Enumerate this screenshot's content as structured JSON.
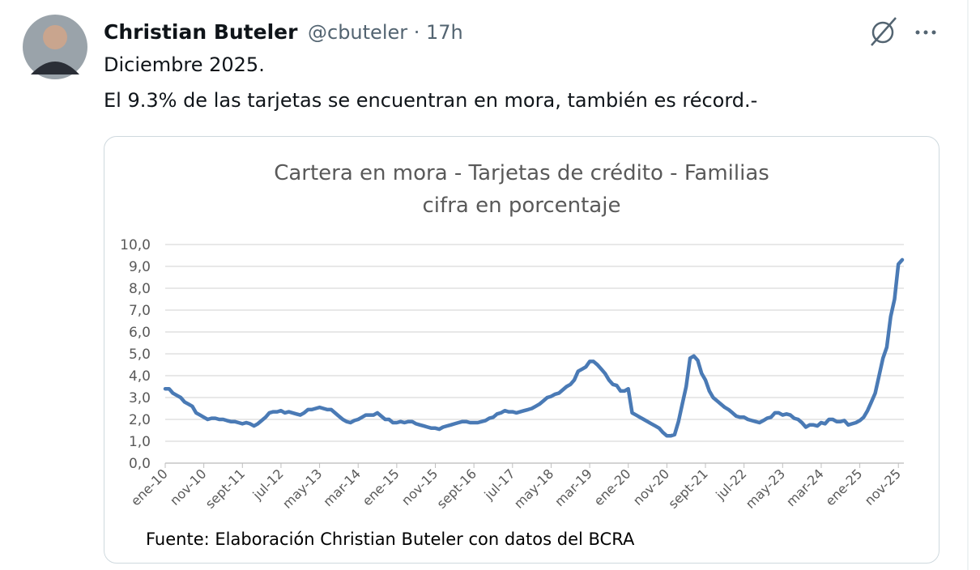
{
  "tweet": {
    "author_name": "Christian Buteler",
    "meta": "@cbuteler · 17h",
    "text_lines": [
      "Diciembre 2025.",
      "El 9.3% de las tarjetas se encuentran en mora, también es récord.-"
    ]
  },
  "chart_data": {
    "type": "line",
    "title": "Cartera en mora - Tarjetas de crédito - Familias",
    "subtitle": "cifra en porcentaje",
    "source": "Fuente: Elaboración Christian Buteler con datos del BCRA",
    "categories": [
      "ene-10",
      null,
      null,
      null,
      null,
      null,
      null,
      null,
      null,
      null,
      "nov-10",
      null,
      null,
      null,
      null,
      null,
      null,
      null,
      null,
      null,
      "sept-11",
      null,
      null,
      null,
      null,
      null,
      null,
      null,
      null,
      null,
      "jul-12",
      null,
      null,
      null,
      null,
      null,
      null,
      null,
      null,
      null,
      "may-13",
      null,
      null,
      null,
      null,
      null,
      null,
      null,
      null,
      null,
      "mar-14",
      null,
      null,
      null,
      null,
      null,
      null,
      null,
      null,
      null,
      "ene-15",
      null,
      null,
      null,
      null,
      null,
      null,
      null,
      null,
      null,
      "nov-15",
      null,
      null,
      null,
      null,
      null,
      null,
      null,
      null,
      null,
      "sept-16",
      null,
      null,
      null,
      null,
      null,
      null,
      null,
      null,
      null,
      "jul-17",
      null,
      null,
      null,
      null,
      null,
      null,
      null,
      null,
      null,
      "may-18",
      null,
      null,
      null,
      null,
      null,
      null,
      null,
      null,
      null,
      "mar-19",
      null,
      null,
      null,
      null,
      null,
      null,
      null,
      null,
      null,
      "ene-20",
      null,
      null,
      null,
      null,
      null,
      null,
      null,
      null,
      null,
      "nov-20",
      null,
      null,
      null,
      null,
      null,
      null,
      null,
      null,
      null,
      "sept-21",
      null,
      null,
      null,
      null,
      null,
      null,
      null,
      null,
      null,
      "jul-22",
      null,
      null,
      null,
      null,
      null,
      null,
      null,
      null,
      null,
      "may-23",
      null,
      null,
      null,
      null,
      null,
      null,
      null,
      null,
      null,
      "mar-24",
      null,
      null,
      null,
      null,
      null,
      null,
      null,
      null,
      null,
      "ene-25",
      null,
      null,
      null,
      null,
      null,
      null,
      null,
      null,
      null,
      "nov-25",
      null
    ],
    "series": [
      {
        "color": "#4a7ab5",
        "values": [
          3.4,
          3.4,
          3.2,
          3.1,
          3.0,
          2.8,
          2.7,
          2.6,
          2.3,
          2.2,
          2.1,
          2.0,
          2.05,
          2.05,
          2.0,
          2.0,
          1.95,
          1.9,
          1.9,
          1.85,
          1.8,
          1.85,
          1.8,
          1.7,
          1.8,
          1.95,
          2.1,
          2.3,
          2.35,
          2.35,
          2.4,
          2.3,
          2.35,
          2.3,
          2.25,
          2.2,
          2.3,
          2.45,
          2.45,
          2.5,
          2.55,
          2.5,
          2.45,
          2.45,
          2.3,
          2.15,
          2.0,
          1.9,
          1.85,
          1.95,
          2.0,
          2.1,
          2.2,
          2.2,
          2.2,
          2.3,
          2.15,
          2.0,
          2.0,
          1.85,
          1.85,
          1.9,
          1.85,
          1.9,
          1.9,
          1.8,
          1.75,
          1.7,
          1.65,
          1.6,
          1.6,
          1.55,
          1.65,
          1.7,
          1.75,
          1.8,
          1.85,
          1.9,
          1.9,
          1.85,
          1.85,
          1.85,
          1.9,
          1.95,
          2.05,
          2.1,
          2.25,
          2.3,
          2.4,
          2.35,
          2.35,
          2.3,
          2.35,
          2.4,
          2.45,
          2.5,
          2.6,
          2.7,
          2.85,
          3.0,
          3.05,
          3.15,
          3.2,
          3.35,
          3.5,
          3.6,
          3.8,
          4.2,
          4.3,
          4.4,
          4.65,
          4.65,
          4.5,
          4.3,
          4.1,
          3.8,
          3.6,
          3.55,
          3.3,
          3.3,
          3.4,
          2.3,
          2.2,
          2.1,
          2.0,
          1.9,
          1.8,
          1.7,
          1.6,
          1.4,
          1.25,
          1.25,
          1.3,
          1.9,
          2.7,
          3.5,
          4.8,
          4.9,
          4.7,
          4.1,
          3.8,
          3.3,
          3.0,
          2.85,
          2.7,
          2.55,
          2.45,
          2.3,
          2.15,
          2.1,
          2.1,
          2.0,
          1.95,
          1.9,
          1.85,
          1.95,
          2.05,
          2.1,
          2.3,
          2.3,
          2.2,
          2.25,
          2.2,
          2.05,
          2.0,
          1.85,
          1.65,
          1.75,
          1.75,
          1.7,
          1.85,
          1.8,
          2.0,
          2.0,
          1.9,
          1.9,
          1.95,
          1.75,
          1.8,
          1.85,
          1.95,
          2.1,
          2.4,
          2.8,
          3.2,
          4.0,
          4.8,
          5.3,
          6.7,
          7.5,
          9.1,
          9.3
        ]
      }
    ],
    "ylim": [
      0,
      10
    ],
    "yticks": [
      {
        "value": 0,
        "label": "0,0"
      },
      {
        "value": 1,
        "label": "1,0"
      },
      {
        "value": 2,
        "label": "2,0"
      },
      {
        "value": 3,
        "label": "3,0"
      },
      {
        "value": 4,
        "label": "4,0"
      },
      {
        "value": 5,
        "label": "5,0"
      },
      {
        "value": 6,
        "label": "6,0"
      },
      {
        "value": 7,
        "label": "7,0"
      },
      {
        "value": 8,
        "label": "8,0"
      },
      {
        "value": 9,
        "label": "9,0"
      },
      {
        "value": 10,
        "label": "10,0"
      }
    ],
    "grid": true
  }
}
